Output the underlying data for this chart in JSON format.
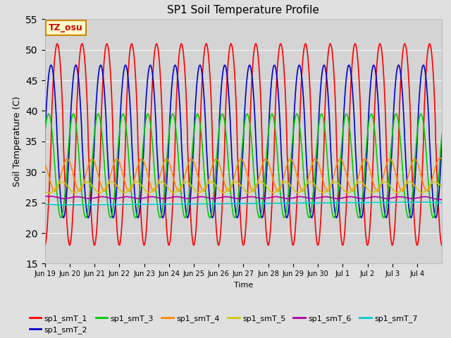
{
  "title": "SP1 Soil Temperature Profile",
  "xlabel": "Time",
  "ylabel": "Soil Temperature (C)",
  "ylim": [
    15,
    55
  ],
  "legend_labels": [
    "sp1_smT_1",
    "sp1_smT_2",
    "sp1_smT_3",
    "sp1_smT_4",
    "sp1_smT_5",
    "sp1_smT_6",
    "sp1_smT_7"
  ],
  "line_colors": [
    "#ff0000",
    "#0000cc",
    "#00cc00",
    "#ff8800",
    "#cccc00",
    "#aa00aa",
    "#00cccc"
  ],
  "annotation_text": "TZ_osu",
  "annotation_color": "#cc0000",
  "annotation_bg": "#ffffcc",
  "annotation_border": "#cc8800",
  "fig_bg_color": "#e0e0e0",
  "plot_bg_color": "#d4d4d4",
  "title_fontsize": 11,
  "tick_labels": [
    "Jun 19",
    "Jun 20",
    "Jun 21",
    "Jun 22",
    "Jun 23",
    "Jun 24",
    "Jun 25",
    "Jun 26",
    "Jun 27",
    "Jun 28",
    "Jun 29",
    "Jun 30",
    "Jul 1",
    "Jul 2",
    "Jul 3",
    "Jul 4"
  ],
  "n_days": 16,
  "points_per_day": 48
}
